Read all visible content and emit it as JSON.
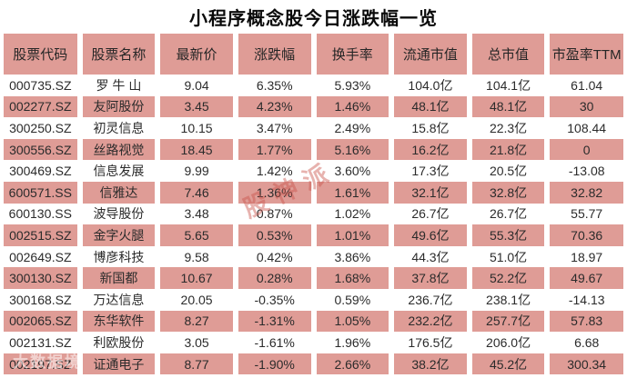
{
  "chart_data": {
    "type": "table",
    "title": "小程序概念股今日涨跌幅一览",
    "columns": [
      "股票代码",
      "股票名称",
      "最新价",
      "涨跌幅",
      "换手率",
      "流通市值",
      "总市值",
      "市盈率TTM"
    ],
    "rows": [
      [
        "000735.SZ",
        "罗 牛 山",
        "9.04",
        "6.35%",
        "5.93%",
        "104.0亿",
        "104.1亿",
        "61.04"
      ],
      [
        "002277.SZ",
        "友阿股份",
        "3.45",
        "4.23%",
        "1.46%",
        "48.1亿",
        "48.1亿",
        "30"
      ],
      [
        "300250.SZ",
        "初灵信息",
        "10.15",
        "3.47%",
        "2.49%",
        "15.8亿",
        "22.3亿",
        "108.44"
      ],
      [
        "300556.SZ",
        "丝路视觉",
        "18.45",
        "1.77%",
        "5.16%",
        "16.2亿",
        "21.8亿",
        "0"
      ],
      [
        "300469.SZ",
        "信息发展",
        "9.99",
        "1.42%",
        "3.60%",
        "17.3亿",
        "20.5亿",
        "-13.08"
      ],
      [
        "600571.SS",
        "信雅达",
        "7.46",
        "1.36%",
        "1.61%",
        "32.1亿",
        "32.8亿",
        "32.82"
      ],
      [
        "600130.SS",
        "波导股份",
        "3.48",
        "0.87%",
        "1.02%",
        "26.7亿",
        "26.7亿",
        "55.77"
      ],
      [
        "002515.SZ",
        "金字火腿",
        "5.65",
        "0.53%",
        "1.01%",
        "49.6亿",
        "55.3亿",
        "70.36"
      ],
      [
        "002649.SZ",
        "博彦科技",
        "9.58",
        "0.42%",
        "3.86%",
        "44.3亿",
        "51.0亿",
        "18.97"
      ],
      [
        "300130.SZ",
        "新国都",
        "10.67",
        "0.28%",
        "1.68%",
        "37.8亿",
        "52.2亿",
        "49.67"
      ],
      [
        "300168.SZ",
        "万达信息",
        "20.05",
        "-0.35%",
        "0.59%",
        "236.7亿",
        "238.1亿",
        "-14.13"
      ],
      [
        "002065.SZ",
        "东华软件",
        "8.27",
        "-1.31%",
        "1.05%",
        "232.2亿",
        "257.7亿",
        "57.83"
      ],
      [
        "002131.SZ",
        "利欧股份",
        "3.05",
        "-1.61%",
        "1.96%",
        "176.5亿",
        "206.0亿",
        "6.68"
      ],
      [
        "002197.SZ",
        "证通电子",
        "8.77",
        "-1.90%",
        "2.66%",
        "38.2亿",
        "45.2亿",
        "300.34"
      ]
    ]
  },
  "watermarks": {
    "center": "股神派",
    "bottom_left": "大数据境"
  },
  "colors": {
    "accent_pink": "#df9c96",
    "text_dark": "#2b2b2b",
    "title_black": "#0a0a0a",
    "watermark_red": "rgba(201,85,76,0.45)",
    "watermark_white": "rgba(255,255,255,0.55)"
  }
}
